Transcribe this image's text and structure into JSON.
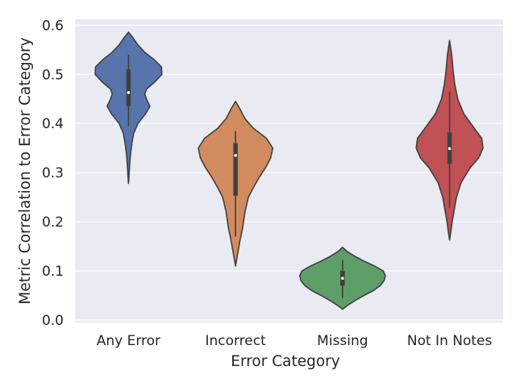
{
  "chart_data": {
    "type": "violin",
    "xlabel": "Error Category",
    "ylabel": "Metric Correlation to Error Category",
    "ylim": [
      -0.005,
      0.612
    ],
    "yticks": [
      0.0,
      0.1,
      0.2,
      0.3,
      0.4,
      0.5,
      0.6
    ],
    "ytick_labels": [
      "0.0",
      "0.1",
      "0.2",
      "0.3",
      "0.4",
      "0.5",
      "0.6"
    ],
    "grid": true,
    "background": "#eaeaf2",
    "categories": [
      "Any Error",
      "Incorrect",
      "Missing",
      "Not In Notes"
    ],
    "violins": [
      {
        "category": "Any Error",
        "color": "#5874ad",
        "range": [
          0.278,
          0.586
        ],
        "quartiles": [
          0.435,
          0.51
        ],
        "median": 0.463,
        "whiskers": [
          0.395,
          0.54
        ],
        "profile": [
          [
            0.278,
            0.0
          ],
          [
            0.29,
            0.01
          ],
          [
            0.305,
            0.02
          ],
          [
            0.32,
            0.03
          ],
          [
            0.34,
            0.05
          ],
          [
            0.36,
            0.08
          ],
          [
            0.38,
            0.12
          ],
          [
            0.4,
            0.22
          ],
          [
            0.42,
            0.4
          ],
          [
            0.435,
            0.5
          ],
          [
            0.45,
            0.42
          ],
          [
            0.46,
            0.38
          ],
          [
            0.47,
            0.42
          ],
          [
            0.485,
            0.62
          ],
          [
            0.5,
            0.78
          ],
          [
            0.515,
            0.77
          ],
          [
            0.53,
            0.6
          ],
          [
            0.545,
            0.38
          ],
          [
            0.56,
            0.22
          ],
          [
            0.575,
            0.1
          ],
          [
            0.586,
            0.0
          ]
        ]
      },
      {
        "category": "Incorrect",
        "color": "#d28b5f",
        "range": [
          0.11,
          0.445
        ],
        "quartiles": [
          0.253,
          0.36
        ],
        "median": 0.335,
        "whiskers": [
          0.17,
          0.385
        ],
        "profile": [
          [
            0.11,
            0.0
          ],
          [
            0.13,
            0.04
          ],
          [
            0.16,
            0.1
          ],
          [
            0.19,
            0.17
          ],
          [
            0.22,
            0.22
          ],
          [
            0.25,
            0.3
          ],
          [
            0.27,
            0.42
          ],
          [
            0.29,
            0.55
          ],
          [
            0.31,
            0.7
          ],
          [
            0.33,
            0.82
          ],
          [
            0.35,
            0.87
          ],
          [
            0.37,
            0.72
          ],
          [
            0.39,
            0.42
          ],
          [
            0.41,
            0.22
          ],
          [
            0.43,
            0.1
          ],
          [
            0.445,
            0.0
          ]
        ]
      },
      {
        "category": "Missing",
        "color": "#5d9e69",
        "range": [
          0.022,
          0.148
        ],
        "quartiles": [
          0.07,
          0.1
        ],
        "median": 0.085,
        "whiskers": [
          0.045,
          0.122
        ],
        "profile": [
          [
            0.022,
            0.0
          ],
          [
            0.03,
            0.12
          ],
          [
            0.04,
            0.3
          ],
          [
            0.05,
            0.5
          ],
          [
            0.06,
            0.72
          ],
          [
            0.07,
            0.88
          ],
          [
            0.08,
            0.97
          ],
          [
            0.09,
            1.0
          ],
          [
            0.1,
            0.95
          ],
          [
            0.11,
            0.75
          ],
          [
            0.12,
            0.5
          ],
          [
            0.13,
            0.28
          ],
          [
            0.14,
            0.1
          ],
          [
            0.148,
            0.0
          ]
        ]
      },
      {
        "category": "Not In Notes",
        "color": "#c05155",
        "range": [
          0.163,
          0.569
        ],
        "quartiles": [
          0.318,
          0.382
        ],
        "median": 0.349,
        "whiskers": [
          0.228,
          0.465
        ],
        "profile": [
          [
            0.163,
            0.0
          ],
          [
            0.18,
            0.03
          ],
          [
            0.2,
            0.06
          ],
          [
            0.22,
            0.1
          ],
          [
            0.25,
            0.16
          ],
          [
            0.28,
            0.27
          ],
          [
            0.31,
            0.48
          ],
          [
            0.33,
            0.68
          ],
          [
            0.35,
            0.78
          ],
          [
            0.37,
            0.75
          ],
          [
            0.39,
            0.58
          ],
          [
            0.42,
            0.33
          ],
          [
            0.45,
            0.19
          ],
          [
            0.48,
            0.12
          ],
          [
            0.51,
            0.08
          ],
          [
            0.54,
            0.05
          ],
          [
            0.569,
            0.0
          ]
        ]
      }
    ]
  }
}
